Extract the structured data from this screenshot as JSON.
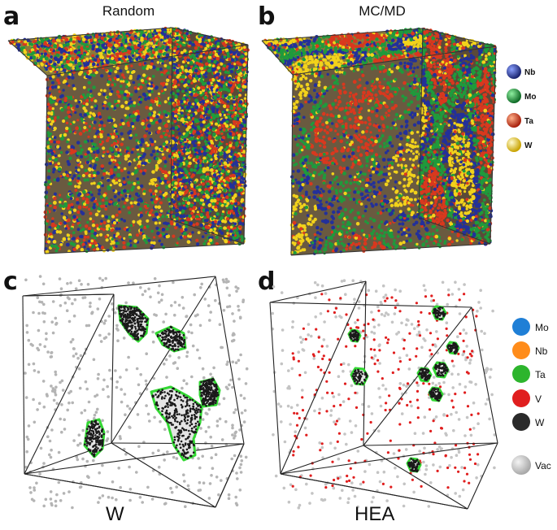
{
  "panels": {
    "a": {
      "letter": "a",
      "title": "Random"
    },
    "b": {
      "letter": "b",
      "title": "MC/MD"
    },
    "c": {
      "letter": "c",
      "label": "W"
    },
    "d": {
      "letter": "d",
      "label": "HEA"
    }
  },
  "legend_top": [
    {
      "name": "Nb",
      "color": "#23309a"
    },
    {
      "name": "Mo",
      "color": "#1f9a3c"
    },
    {
      "name": "Ta",
      "color": "#d9381e"
    },
    {
      "name": "W",
      "color": "#f2d21b"
    }
  ],
  "legend_bottom": [
    {
      "name": "Mo",
      "color": "#1f7fd6"
    },
    {
      "name": "Nb",
      "color": "#ff8c1a"
    },
    {
      "name": "Ta",
      "color": "#2db52d"
    },
    {
      "name": "V",
      "color": "#e01e1e"
    },
    {
      "name": "W",
      "color": "#2a2a2a"
    },
    {
      "name": "Vac",
      "color": "#c8c8c8"
    }
  ]
}
